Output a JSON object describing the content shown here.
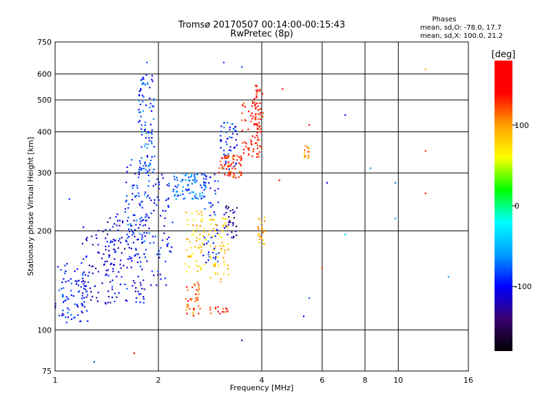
{
  "chart_data": {
    "type": "scatter",
    "title": "Tromsø 20170507 00:14:00-00:15:43",
    "subtitle": "RwPretec (8p)",
    "xlabel": "Frequency [MHz]",
    "ylabel": "Stationary phase Virtual Height [km]",
    "x_scale": "log",
    "y_scale": "log",
    "xlim": [
      1,
      16
    ],
    "ylim": [
      75,
      750
    ],
    "x_ticks": [
      1,
      2,
      4,
      6,
      8,
      10,
      16
    ],
    "x_ticklabels": [
      "1",
      "2",
      "4",
      "6",
      "8",
      "10",
      "16"
    ],
    "y_ticks": [
      75,
      100,
      200,
      300,
      400,
      500,
      600,
      750
    ],
    "y_ticklabels": [
      "75",
      "100",
      "200",
      "300",
      "400",
      "500",
      "600",
      "750"
    ],
    "grid": true,
    "phase_info": {
      "heading": "Phases",
      "line_o": "mean, sd,O: -78.0, 17.7",
      "line_x": "mean, sd,X: 100.0, 21.2"
    },
    "colorbar": {
      "label": "[deg]",
      "min": -180,
      "max": 180,
      "ticks": [
        100,
        0,
        -100
      ],
      "ticklabels": [
        "100",
        "0",
        "-100"
      ],
      "colors": [
        "#000000",
        "#3a0070",
        "#0000ff",
        "#00a0ff",
        "#00ffff",
        "#00ff00",
        "#ffff00",
        "#ffa000",
        "#ff0000",
        "#ff0000"
      ]
    },
    "clusters": [
      {
        "f": [
          1.0,
          1.25
        ],
        "h": [
          105,
          160
        ],
        "phase": -95,
        "n": 90
      },
      {
        "f": [
          1.2,
          1.5
        ],
        "h": [
          120,
          210
        ],
        "phase": -110,
        "n": 70
      },
      {
        "f": [
          1.4,
          1.85
        ],
        "h": [
          120,
          230
        ],
        "phase": -105,
        "n": 120
      },
      {
        "f": [
          1.6,
          1.9
        ],
        "h": [
          160,
          330
        ],
        "phase": -90,
        "n": 90
      },
      {
        "f": [
          1.75,
          1.95
        ],
        "h": [
          300,
          600
        ],
        "phase": -85,
        "n": 90
      },
      {
        "f": [
          1.9,
          2.2
        ],
        "h": [
          135,
          300
        ],
        "phase": -100,
        "n": 60
      },
      {
        "f": [
          2.2,
          2.75
        ],
        "h": [
          250,
          300
        ],
        "phase": -70,
        "n": 90
      },
      {
        "f": [
          2.4,
          2.65
        ],
        "h": [
          110,
          140
        ],
        "phase": 120,
        "n": 40
      },
      {
        "f": [
          2.4,
          2.75
        ],
        "h": [
          150,
          230
        ],
        "phase": 80,
        "n": 60
      },
      {
        "f": [
          2.7,
          3.0
        ],
        "h": [
          160,
          300
        ],
        "phase": -95,
        "n": 50
      },
      {
        "f": [
          2.8,
          3.2
        ],
        "h": [
          140,
          220
        ],
        "phase": 80,
        "n": 60
      },
      {
        "f": [
          3.0,
          3.4
        ],
        "h": [
          300,
          430
        ],
        "phase": -90,
        "n": 50
      },
      {
        "f": [
          3.1,
          3.4
        ],
        "h": [
          190,
          240
        ],
        "phase": -130,
        "n": 30
      },
      {
        "f": [
          3.0,
          3.5
        ],
        "h": [
          290,
          340
        ],
        "phase": 130,
        "n": 70
      },
      {
        "f": [
          3.5,
          4.0
        ],
        "h": [
          330,
          500
        ],
        "phase": 140,
        "n": 70
      },
      {
        "f": [
          3.8,
          4.05
        ],
        "h": [
          400,
          560
        ],
        "phase": 140,
        "n": 40
      },
      {
        "f": [
          3.9,
          4.1
        ],
        "h": [
          180,
          220
        ],
        "phase": 90,
        "n": 25
      },
      {
        "f": [
          2.8,
          3.2
        ],
        "h": [
          112,
          118
        ],
        "phase": 135,
        "n": 15
      },
      {
        "f": [
          5.3,
          5.5
        ],
        "h": [
          330,
          370
        ],
        "phase": 100,
        "n": 15
      }
    ],
    "points": [
      {
        "f": 1.85,
        "h": 650,
        "phase": -80
      },
      {
        "f": 3.1,
        "h": 650,
        "phase": -90
      },
      {
        "f": 3.5,
        "h": 630,
        "phase": -80
      },
      {
        "f": 12.0,
        "h": 620,
        "phase": 100
      },
      {
        "f": 12.0,
        "h": 350,
        "phase": 130
      },
      {
        "f": 12.0,
        "h": 260,
        "phase": 160
      },
      {
        "f": 7.0,
        "h": 450,
        "phase": -110
      },
      {
        "f": 6.2,
        "h": 280,
        "phase": -110
      },
      {
        "f": 8.3,
        "h": 310,
        "phase": -60
      },
      {
        "f": 9.8,
        "h": 280,
        "phase": -70
      },
      {
        "f": 9.8,
        "h": 218,
        "phase": -60
      },
      {
        "f": 7.0,
        "h": 195,
        "phase": -40
      },
      {
        "f": 14.0,
        "h": 145,
        "phase": -60
      },
      {
        "f": 5.5,
        "h": 125,
        "phase": -80
      },
      {
        "f": 5.3,
        "h": 110,
        "phase": -100
      },
      {
        "f": 3.5,
        "h": 93,
        "phase": -120
      },
      {
        "f": 1.3,
        "h": 80,
        "phase": -80
      },
      {
        "f": 1.7,
        "h": 85,
        "phase": 140
      },
      {
        "f": 4.6,
        "h": 540,
        "phase": 140
      },
      {
        "f": 4.5,
        "h": 285,
        "phase": 140
      },
      {
        "f": 5.5,
        "h": 420,
        "phase": 140
      },
      {
        "f": 6.0,
        "h": 155,
        "phase": 130
      },
      {
        "f": 1.1,
        "h": 250,
        "phase": -90
      }
    ]
  }
}
